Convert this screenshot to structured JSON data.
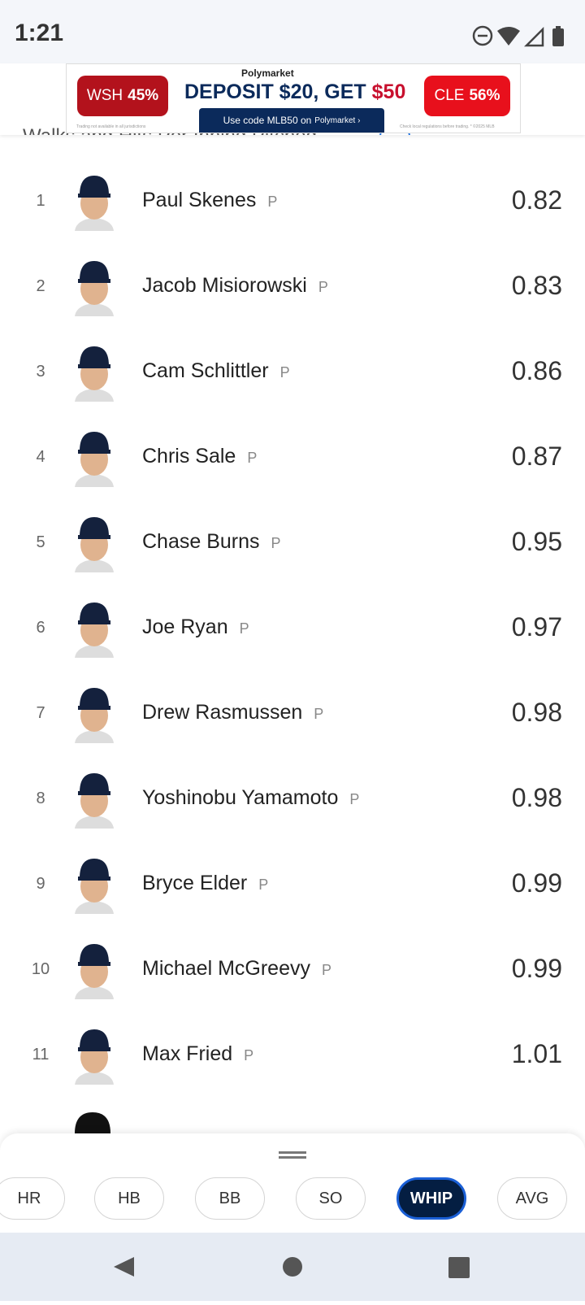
{
  "status_bar": {
    "time": "1:21"
  },
  "ad": {
    "left_team": "WSH",
    "left_pct": "45%",
    "brand": "Polymarket",
    "headline_main": "DEPOSIT $20, GET",
    "headline_amount": "$50",
    "right_team": "CLE",
    "right_pct": "56%",
    "cta_code": "Use code MLB50 on",
    "cta_brand": "Polymarket ›",
    "fine_left": "Trading not available in all jurisdictions",
    "fine_right": "Check local regulations before trading. * ©2025 MLB"
  },
  "header": {
    "title": "Walks and Hits Per Inning Pitched"
  },
  "leaders": [
    {
      "rank": "1",
      "name": "Paul Skenes",
      "position": "P",
      "value": "0.82"
    },
    {
      "rank": "2",
      "name": "Jacob Misiorowski",
      "position": "P",
      "value": "0.83"
    },
    {
      "rank": "3",
      "name": "Cam Schlittler",
      "position": "P",
      "value": "0.86"
    },
    {
      "rank": "4",
      "name": "Chris Sale",
      "position": "P",
      "value": "0.87"
    },
    {
      "rank": "5",
      "name": "Chase Burns",
      "position": "P",
      "value": "0.95"
    },
    {
      "rank": "6",
      "name": "Joe Ryan",
      "position": "P",
      "value": "0.97"
    },
    {
      "rank": "7",
      "name": "Drew Rasmussen",
      "position": "P",
      "value": "0.98"
    },
    {
      "rank": "8",
      "name": "Yoshinobu Yamamoto",
      "position": "P",
      "value": "0.98"
    },
    {
      "rank": "9",
      "name": "Bryce Elder",
      "position": "P",
      "value": "0.99"
    },
    {
      "rank": "10",
      "name": "Michael McGreevy",
      "position": "P",
      "value": "0.99"
    },
    {
      "rank": "11",
      "name": "Max Fried",
      "position": "P",
      "value": "1.01"
    }
  ],
  "tabs": [
    "HR",
    "HB",
    "BB",
    "SO",
    "WHIP",
    "AVG"
  ],
  "active_tab": 4
}
